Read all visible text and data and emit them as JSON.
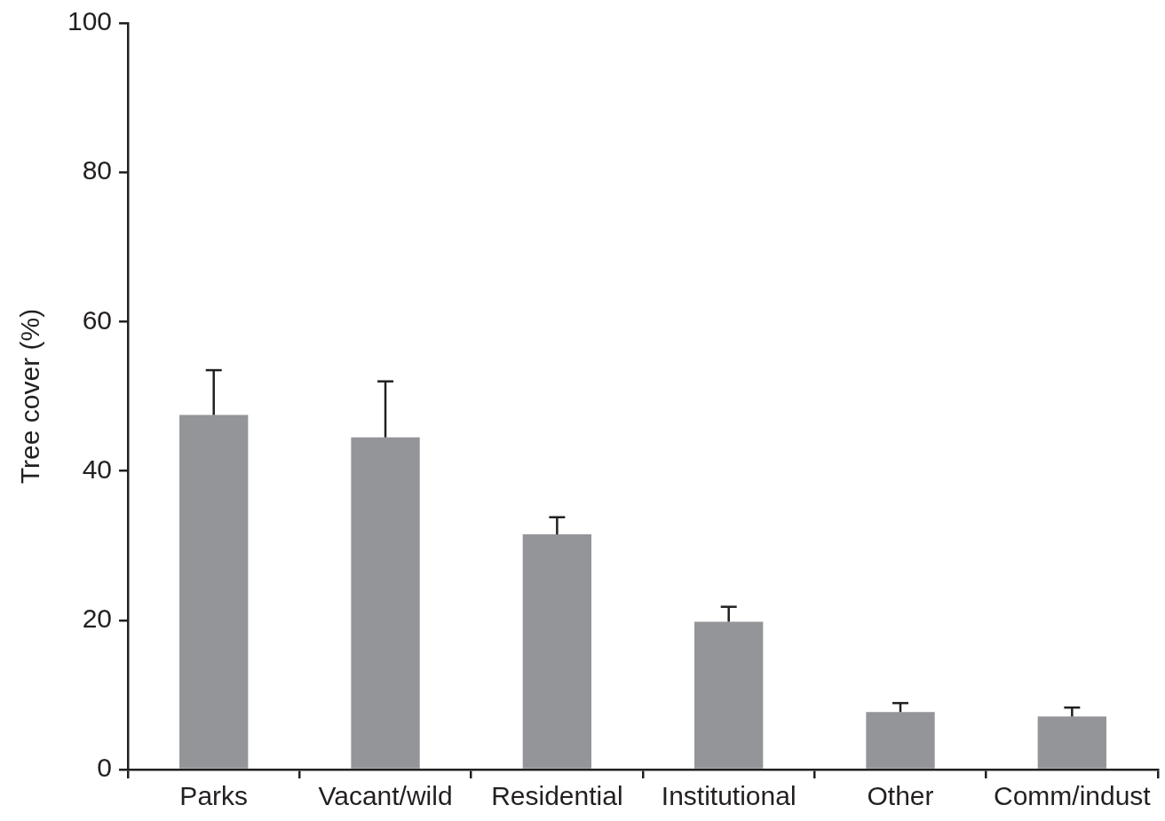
{
  "chart_data": {
    "type": "bar",
    "ylabel": "Tree cover (%)",
    "categories": [
      "Parks",
      "Vacant/wild",
      "Residential",
      "Institutional",
      "Other",
      "Comm/indust"
    ],
    "values": [
      47.5,
      44.5,
      31.5,
      19.8,
      7.7,
      7.1
    ],
    "errors": [
      [
        47.5,
        53.5
      ],
      [
        44.5,
        52
      ],
      [
        31.5,
        33.8
      ],
      [
        19.8,
        21.8
      ],
      [
        7.7,
        8.9
      ],
      [
        7.1,
        8.3
      ]
    ],
    "color": "#939598",
    "ylim": [
      0,
      100
    ],
    "yticks": [
      0,
      20,
      40,
      60,
      80,
      100
    ],
    "grid": false,
    "legend": false
  }
}
